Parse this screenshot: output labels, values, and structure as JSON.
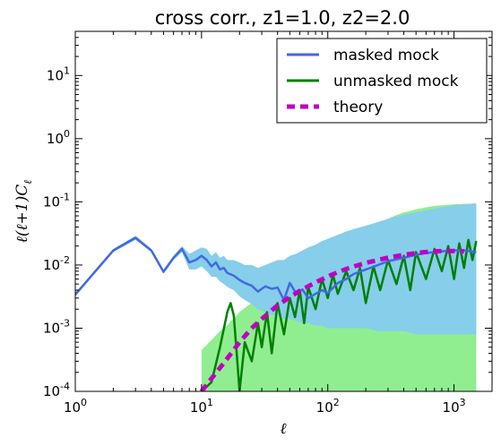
{
  "chart_data": {
    "type": "line",
    "title": "cross corr., z1=1.0, z2=2.0",
    "xlabel": "ℓ",
    "ylabel": "ℓ(ℓ+1)C",
    "ylabel_sub": "ℓ",
    "xscale": "log",
    "yscale": "log",
    "xlim": [
      1,
      2000
    ],
    "ylim": [
      0.0001,
      50
    ],
    "xticks": [
      {
        "value": 1,
        "base": "10",
        "exp": "0"
      },
      {
        "value": 10,
        "base": "10",
        "exp": "1"
      },
      {
        "value": 100,
        "base": "10",
        "exp": "2"
      },
      {
        "value": 1000,
        "base": "10",
        "exp": "3"
      }
    ],
    "yticks": [
      {
        "value": 0.0001,
        "base": "10",
        "exp": "-4"
      },
      {
        "value": 0.001,
        "base": "10",
        "exp": "-3"
      },
      {
        "value": 0.01,
        "base": "10",
        "exp": "-2"
      },
      {
        "value": 0.1,
        "base": "10",
        "exp": "-1"
      },
      {
        "value": 1,
        "base": "10",
        "exp": "0"
      },
      {
        "value": 10,
        "base": "10",
        "exp": "1"
      }
    ],
    "legend_position": "top-right",
    "series": [
      {
        "name": "masked mock",
        "color": "#4169e1",
        "band_color": "#87ceeb",
        "x": [
          1,
          2,
          3,
          4,
          5,
          6,
          7,
          8,
          9,
          10,
          11,
          12,
          13,
          14,
          15,
          16,
          18,
          20,
          22,
          25,
          28,
          32,
          36,
          40,
          45,
          50,
          56,
          63,
          70,
          80,
          90,
          100,
          120,
          140,
          160,
          200,
          250,
          300,
          400,
          500,
          600,
          800,
          1000,
          1200,
          1500
        ],
        "y": [
          0.0034,
          0.017,
          0.027,
          0.017,
          0.0078,
          0.013,
          0.018,
          0.011,
          0.012,
          0.014,
          0.012,
          0.0095,
          0.011,
          0.0085,
          0.009,
          0.0075,
          0.0068,
          0.0058,
          0.0052,
          0.0047,
          0.0038,
          0.0046,
          0.0042,
          0.0044,
          0.0028,
          0.0052,
          0.0036,
          0.0041,
          0.003,
          0.0035,
          0.004,
          0.0036,
          0.0052,
          0.006,
          0.0072,
          0.0085,
          0.01,
          0.0115,
          0.013,
          0.0145,
          0.0155,
          0.0165,
          0.017,
          0.017,
          0.016
        ],
        "band_lower": [
          0.0032,
          0.016,
          0.025,
          0.016,
          0.0073,
          0.012,
          0.016,
          0.0085,
          0.0085,
          0.0095,
          0.008,
          0.0065,
          0.0065,
          0.0055,
          0.005,
          0.0045,
          0.004,
          0.0032,
          0.0028,
          0.0024,
          0.002,
          0.0018,
          0.0016,
          0.0016,
          0.0014,
          0.0014,
          0.0013,
          0.0012,
          0.0012,
          0.0011,
          0.0011,
          0.001,
          0.001,
          0.001,
          0.001,
          0.001,
          0.0009,
          0.0009,
          0.0009,
          0.0008,
          0.0008,
          0.0008,
          0.0008,
          0.0008,
          0.0008
        ],
        "band_upper": [
          0.0036,
          0.018,
          0.029,
          0.018,
          0.0085,
          0.014,
          0.02,
          0.015,
          0.017,
          0.019,
          0.018,
          0.014,
          0.016,
          0.013,
          0.014,
          0.012,
          0.012,
          0.011,
          0.01,
          0.01,
          0.009,
          0.01,
          0.011,
          0.012,
          0.012,
          0.014,
          0.015,
          0.017,
          0.019,
          0.021,
          0.024,
          0.026,
          0.03,
          0.034,
          0.037,
          0.042,
          0.048,
          0.054,
          0.062,
          0.068,
          0.074,
          0.082,
          0.088,
          0.092,
          0.095
        ]
      },
      {
        "name": "unmasked mock",
        "color": "#008000",
        "band_color": "#90ee90",
        "x": [
          10,
          12,
          14,
          16,
          17,
          18,
          19,
          20,
          22,
          25,
          28,
          30,
          33,
          36,
          40,
          45,
          50,
          55,
          60,
          65,
          70,
          80,
          90,
          100,
          110,
          120,
          140,
          160,
          180,
          200,
          230,
          260,
          300,
          350,
          400,
          450,
          500,
          600,
          700,
          800,
          900,
          1000,
          1100,
          1200,
          1300,
          1400,
          1500
        ],
        "y": [
          0.0001,
          0.00014,
          0.0005,
          0.0018,
          0.0025,
          0.0016,
          0.0004,
          0.0001,
          0.0006,
          0.0003,
          0.0012,
          0.0005,
          0.0018,
          0.0004,
          0.0025,
          0.0008,
          0.003,
          0.0015,
          0.004,
          0.0012,
          0.0045,
          0.002,
          0.006,
          0.003,
          0.007,
          0.0035,
          0.008,
          0.004,
          0.009,
          0.0025,
          0.0095,
          0.004,
          0.012,
          0.005,
          0.014,
          0.004,
          0.016,
          0.006,
          0.018,
          0.008,
          0.02,
          0.006,
          0.022,
          0.009,
          0.025,
          0.012,
          0.024
        ],
        "band_lower": [
          0.0001,
          0.0001,
          0.0001,
          0.0001,
          0.0001,
          0.0001,
          0.0001,
          0.0001,
          0.0001,
          0.0001,
          0.0001,
          0.0001,
          0.0001,
          0.0001,
          0.0001,
          0.0001,
          0.0001,
          0.0001,
          0.0001,
          0.0001,
          0.0001,
          0.0001,
          0.0001,
          0.0001,
          0.0001,
          0.0001,
          0.0001,
          0.0001,
          0.0001,
          0.0001,
          0.0001,
          0.0001,
          0.0001,
          0.0001,
          0.0001,
          0.0001,
          0.0001,
          0.0001,
          0.0001,
          0.0001,
          0.0001,
          0.0001,
          0.0001,
          0.0001,
          0.0001,
          0.0001,
          0.0001
        ],
        "band_upper": [
          0.00045,
          0.00065,
          0.0009,
          0.0011,
          0.0013,
          0.0014,
          0.0016,
          0.0018,
          0.0021,
          0.0025,
          0.003,
          0.0034,
          0.0039,
          0.0045,
          0.0052,
          0.006,
          0.0068,
          0.0077,
          0.0086,
          0.0095,
          0.0105,
          0.0125,
          0.0145,
          0.0165,
          0.0185,
          0.02,
          0.024,
          0.028,
          0.032,
          0.036,
          0.042,
          0.048,
          0.054,
          0.062,
          0.068,
          0.072,
          0.076,
          0.082,
          0.086,
          0.088,
          0.09,
          0.092,
          0.092,
          0.093,
          0.093,
          0.093,
          0.092
        ]
      },
      {
        "name": "theory",
        "color": "#bf00bf",
        "dashed": true,
        "x": [
          10,
          12,
          15,
          20,
          25,
          30,
          40,
          50,
          60,
          70,
          80,
          100,
          120,
          150,
          200,
          250,
          300,
          400,
          500,
          600,
          700,
          800,
          1000,
          1200
        ],
        "y": [
          0.0001,
          0.00016,
          0.00028,
          0.0006,
          0.001,
          0.0014,
          0.0023,
          0.0031,
          0.0039,
          0.0046,
          0.0053,
          0.0066,
          0.0077,
          0.0091,
          0.0108,
          0.012,
          0.0131,
          0.0145,
          0.0154,
          0.0161,
          0.0164,
          0.0166,
          0.0167,
          0.0165
        ]
      }
    ]
  }
}
